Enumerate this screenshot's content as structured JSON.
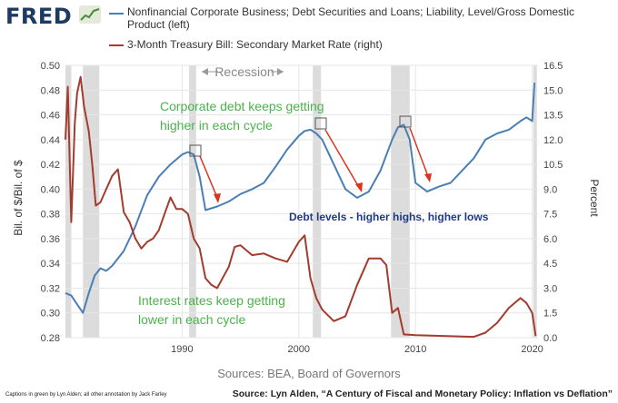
{
  "header": {
    "logo_text": "FRED",
    "logo_icon": "fred-chart-icon"
  },
  "legend": [
    {
      "label": "Nonfinancial Corporate Business; Debt Securities and Loans; Liability, Level/Gross Domestic Product (left)",
      "color": "#4a7fb5"
    },
    {
      "label": "3-Month Treasury Bill: Secondary Market Rate (right)",
      "color": "#a33b2f"
    }
  ],
  "chart_data": {
    "type": "line",
    "x_range": [
      1980,
      2020.5
    ],
    "left_axis": {
      "label": "Bil. of $/Bil. of $",
      "ylim": [
        0.28,
        0.5
      ],
      "ticks": [
        "0.28",
        "0.30",
        "0.32",
        "0.34",
        "0.36",
        "0.38",
        "0.40",
        "0.42",
        "0.44",
        "0.46",
        "0.48",
        "0.50"
      ]
    },
    "right_axis": {
      "label": "Percent",
      "ylim": [
        0,
        16.5
      ],
      "ticks": [
        "0.0",
        "1.5",
        "3.0",
        "4.5",
        "6.0",
        "7.5",
        "9.0",
        "10.5",
        "12.0",
        "13.5",
        "15.0",
        "16.5"
      ]
    },
    "x_ticks": [
      "1990",
      "2000",
      "2010",
      "2020"
    ],
    "x_tick_values": [
      1990,
      2000,
      2010,
      2020
    ],
    "grid": true,
    "recessions": [
      [
        1980.0,
        1980.5
      ],
      [
        1981.5,
        1982.9
      ],
      [
        1990.6,
        1991.2
      ],
      [
        2001.2,
        2001.9
      ],
      [
        2007.9,
        2009.5
      ],
      [
        2020.1,
        2020.4
      ]
    ],
    "series": [
      {
        "name": "Nonfinancial Corporate Business; Debt Securities and Loans; Liability, Level/Gross Domestic Product (left)",
        "axis": "left",
        "color": "#4a7fb5",
        "x": [
          1980,
          1980.5,
          1981,
          1981.5,
          1982,
          1982.5,
          1983,
          1983.5,
          1984,
          1985,
          1986,
          1987,
          1988,
          1989,
          1990,
          1990.5,
          1991,
          1991.5,
          1992,
          1993,
          1994,
          1995,
          1996,
          1997,
          1998,
          1999,
          2000,
          2000.5,
          2001,
          2001.5,
          2002,
          2003,
          2004,
          2005,
          2006,
          2007,
          2008,
          2008.5,
          2009,
          2009.5,
          2010,
          2011,
          2012,
          2013,
          2014,
          2015,
          2016,
          2017,
          2018,
          2019,
          2019.5,
          2020,
          2020.2
        ],
        "y": [
          0.316,
          0.314,
          0.307,
          0.3,
          0.316,
          0.33,
          0.336,
          0.334,
          0.338,
          0.35,
          0.37,
          0.395,
          0.41,
          0.42,
          0.428,
          0.43,
          0.428,
          0.41,
          0.383,
          0.386,
          0.39,
          0.396,
          0.4,
          0.405,
          0.418,
          0.432,
          0.443,
          0.447,
          0.448,
          0.445,
          0.44,
          0.42,
          0.4,
          0.393,
          0.398,
          0.415,
          0.44,
          0.45,
          0.452,
          0.44,
          0.405,
          0.398,
          0.402,
          0.405,
          0.415,
          0.425,
          0.44,
          0.445,
          0.448,
          0.455,
          0.458,
          0.455,
          0.486
        ]
      },
      {
        "name": "3-Month Treasury Bill: Secondary Market Rate (right)",
        "axis": "right",
        "color": "#a33b2f",
        "x": [
          1980,
          1980.2,
          1980.5,
          1980.8,
          1981,
          1981.3,
          1981.6,
          1982,
          1982.3,
          1982.6,
          1983,
          1983.5,
          1984,
          1984.5,
          1985,
          1985.5,
          1986,
          1986.5,
          1987,
          1987.5,
          1988,
          1988.5,
          1989,
          1989.5,
          1990,
          1990.5,
          1991,
          1991.5,
          1992,
          1992.5,
          1993,
          1994,
          1994.5,
          1995,
          1996,
          1997,
          1998,
          1999,
          2000,
          2000.5,
          2001,
          2001.5,
          2002,
          2003,
          2004,
          2005,
          2006,
          2007,
          2007.5,
          2008,
          2008.5,
          2009,
          2010,
          2015,
          2016,
          2017,
          2018,
          2019,
          2019.5,
          2020,
          2020.3
        ],
        "y": [
          12.0,
          15.2,
          7.0,
          13.0,
          14.8,
          15.8,
          14.0,
          12.5,
          10.5,
          8.0,
          8.2,
          9.0,
          9.8,
          10.2,
          7.6,
          7.0,
          6.0,
          5.4,
          5.8,
          6.0,
          6.5,
          7.5,
          8.5,
          7.8,
          7.8,
          7.5,
          6.0,
          5.4,
          3.6,
          3.2,
          3.0,
          4.3,
          5.5,
          5.6,
          5.0,
          5.1,
          4.8,
          4.6,
          5.8,
          6.2,
          3.6,
          2.4,
          1.7,
          1.0,
          1.3,
          3.2,
          4.8,
          4.8,
          4.4,
          1.5,
          1.8,
          0.2,
          0.15,
          0.05,
          0.3,
          0.9,
          1.8,
          2.4,
          2.1,
          1.5,
          0.1
        ]
      }
    ],
    "annotations": [
      {
        "text": "Recession",
        "kind": "gray"
      },
      {
        "text": "Corporate debt keeps getting higher in each cycle",
        "kind": "green"
      },
      {
        "text": "Debt levels - higher highs, higher lows",
        "kind": "navy"
      },
      {
        "text": "Interest rates keep getting lower in each cycle",
        "kind": "green"
      }
    ]
  },
  "footer": {
    "sources": "Sources: BEA, Board of Governors",
    "caption_small": "Captions in green by Lyn Alden; all other annotation by Jack Farley",
    "caption_big": "Source: Lyn Alden, “A Century of Fiscal and Monetary Policy: Inflation vs Deflation”"
  }
}
